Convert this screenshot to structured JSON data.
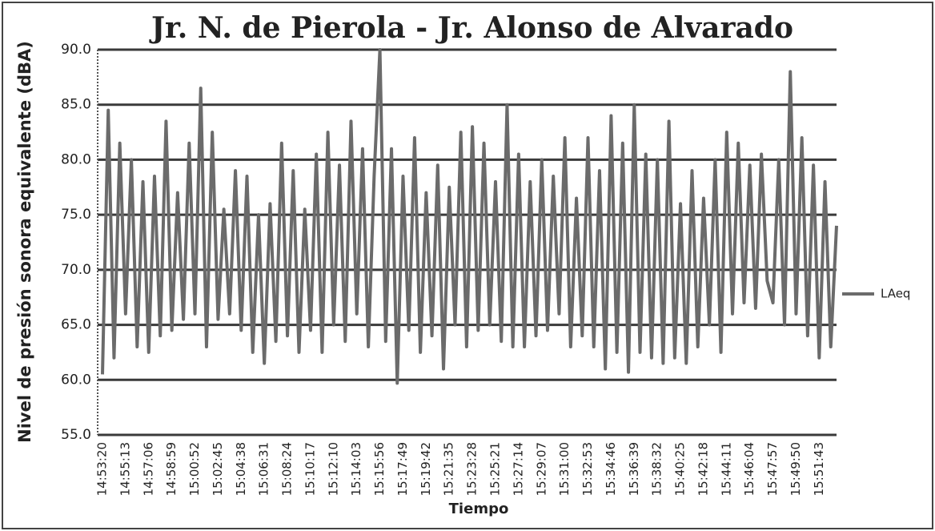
{
  "chart_data": {
    "type": "line",
    "title": "Jr. N. de Pierola - Jr. Alonso de Alvarado",
    "y_label": "Nivel de presión sonora equivalente (dBA)",
    "x_label": "Tiempo",
    "categories": [
      "14:53:20",
      null,
      null,
      null,
      "14:55:13",
      null,
      null,
      null,
      "14:57:06",
      null,
      null,
      null,
      "14:58:59",
      null,
      null,
      null,
      "15:00:52",
      null,
      null,
      null,
      "15:02:45",
      null,
      null,
      null,
      "15:04:38",
      null,
      null,
      null,
      "15:06:31",
      null,
      null,
      null,
      "15:08:24",
      null,
      null,
      null,
      "15:10:17",
      null,
      null,
      null,
      "15:12:10",
      null,
      null,
      null,
      "15:14:03",
      null,
      null,
      null,
      "15:15:56",
      null,
      null,
      null,
      "15:17:49",
      null,
      null,
      null,
      "15:19:42",
      null,
      null,
      null,
      "15:21:35",
      null,
      null,
      null,
      "15:23:28",
      null,
      null,
      null,
      "15:25:21",
      null,
      null,
      null,
      "15:27:14",
      null,
      null,
      null,
      "15:29:07",
      null,
      null,
      null,
      "15:31:00",
      null,
      null,
      null,
      "15:32:53",
      null,
      null,
      null,
      "15:34:46",
      null,
      null,
      null,
      "15:36:39",
      null,
      null,
      null,
      "15:38:32",
      null,
      null,
      null,
      "15:40:25",
      null,
      null,
      null,
      "15:42:18",
      null,
      null,
      null,
      "15:44:11",
      null,
      null,
      null,
      "15:46:04",
      null,
      null,
      null,
      "15:47:57",
      null,
      null,
      null,
      "15:49:50",
      null,
      null,
      null,
      "15:51:43",
      null,
      null,
      null
    ],
    "series": [
      {
        "name": "LAeq",
        "color": "#6b6b6b",
        "values": [
          60.5,
          84.5,
          62,
          81.5,
          66,
          80,
          63,
          78,
          62.5,
          78.5,
          64,
          83.5,
          64.5,
          77,
          65.5,
          81.5,
          66,
          86.5,
          63,
          82.5,
          65.5,
          75.5,
          66,
          79,
          64.5,
          78.5,
          62.5,
          75,
          61.5,
          76,
          63.5,
          81.5,
          64,
          79,
          62.5,
          75.5,
          64.5,
          80.5,
          62.5,
          82.5,
          65,
          79.5,
          63.5,
          83.5,
          66,
          81,
          63,
          78.5,
          90,
          63.5,
          81,
          59.7,
          78.5,
          64.5,
          82,
          62.5,
          77,
          64,
          79.5,
          61,
          77.5,
          65,
          82.5,
          63,
          83,
          64.5,
          81.5,
          65,
          78,
          63.5,
          85,
          63,
          80.5,
          63,
          78,
          64,
          80,
          64.5,
          78.5,
          66,
          82,
          63,
          76.5,
          64,
          82,
          63,
          79,
          61,
          84,
          62.5,
          81.5,
          60.7,
          85,
          62.5,
          80.5,
          62,
          80,
          61.5,
          83.5,
          62,
          76,
          61.5,
          79,
          63,
          76.5,
          65,
          80,
          62.5,
          82.5,
          66,
          81.5,
          67,
          79.5,
          66.5,
          80.5,
          69,
          67,
          80,
          65,
          88,
          66,
          82,
          64,
          79.5,
          62,
          78,
          63,
          74
        ]
      }
    ],
    "ylim": [
      55,
      90
    ],
    "yticks": [
      {
        "value": 55,
        "label": "55.0"
      },
      {
        "value": 60,
        "label": "60.0"
      },
      {
        "value": 65,
        "label": "65.0"
      },
      {
        "value": 70,
        "label": "70.0"
      },
      {
        "value": 75,
        "label": "75.0"
      },
      {
        "value": 80,
        "label": "80.0"
      },
      {
        "value": 85,
        "label": "85.0"
      },
      {
        "value": 90,
        "label": "90.0"
      }
    ],
    "grid": true,
    "legend": "right"
  }
}
